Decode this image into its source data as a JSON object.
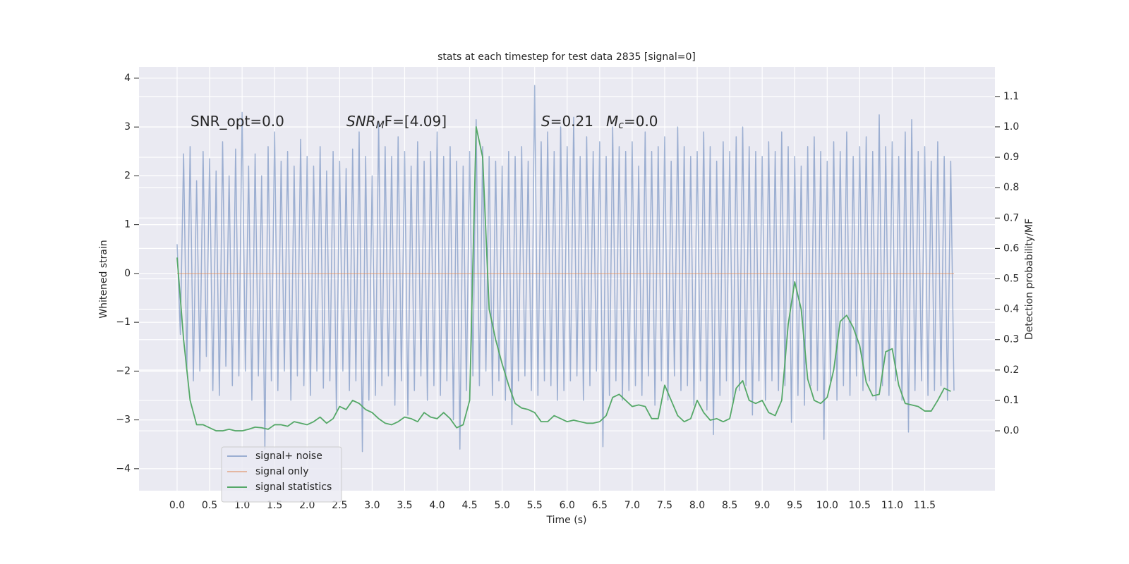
{
  "chart_data": {
    "type": "line",
    "title": "stats at each timestep for test data 2835 [signal=0]",
    "x_label": "Time (s)",
    "y_label": "Whitened strain",
    "y2_label": "Detection probability/MF",
    "xlim": [
      -0.586,
      12.58
    ],
    "ylim": [
      -4.45,
      4.23
    ],
    "y2lim": [
      -0.197,
      1.197
    ],
    "xticks": [
      {
        "value": 0,
        "label": "0.0"
      },
      0.5,
      {
        "value": 1,
        "label": "1.0"
      },
      1.5,
      {
        "value": 2,
        "label": "2.0"
      },
      2.5,
      {
        "value": 3,
        "label": "3.0"
      },
      3.5,
      {
        "value": 4,
        "label": "4.0"
      },
      4.5,
      {
        "value": 5,
        "label": "5.0"
      },
      5.5,
      {
        "value": 6,
        "label": "6.0"
      },
      6.5,
      {
        "value": 7,
        "label": "7.0"
      },
      7.5,
      {
        "value": 8,
        "label": "8.0"
      },
      8.5,
      {
        "value": 9,
        "label": "9.0"
      },
      9.5,
      {
        "value": 10,
        "label": "10.0"
      },
      10.5,
      {
        "value": 11,
        "label": "11.0"
      },
      11.5
    ],
    "yticks": [
      {
        "value": -4,
        "label": "−4"
      },
      {
        "value": -3,
        "label": "−3"
      },
      {
        "value": -2,
        "label": "−2"
      },
      {
        "value": -1,
        "label": "−1"
      },
      0,
      1,
      2,
      3,
      4
    ],
    "y2ticks": [
      {
        "value": 0,
        "label": "0.0"
      },
      0.1,
      0.2,
      0.3,
      0.4,
      0.5,
      0.6,
      0.7,
      0.8,
      0.9,
      {
        "value": 1,
        "label": "1.0"
      },
      1.1
    ],
    "grid": true,
    "legend": "lower left",
    "annotations": [
      {
        "main": "SNR_opt=0.0",
        "italic": false
      },
      {
        "main": "SNR",
        "sub": "M",
        "tail": "F=[4.09]",
        "italic": true
      },
      {
        "main": "S",
        "tail": "=0.21",
        "italic": true
      },
      {
        "main": "M",
        "sub": "c",
        "tail": "=0.0",
        "italic": true
      }
    ],
    "series": [
      {
        "name": "signal+ noise",
        "color": "#4c72b0",
        "axis": "y",
        "x": [
          0,
          0.05,
          0.1,
          0.15,
          0.2,
          0.25,
          0.3,
          0.35,
          0.4,
          0.45,
          0.5,
          0.55,
          0.6,
          0.65,
          0.7,
          0.75,
          0.8,
          0.85,
          0.9,
          0.95,
          1,
          1.05,
          1.1,
          1.15,
          1.2,
          1.25,
          1.3,
          1.35,
          1.4,
          1.45,
          1.5,
          1.55,
          1.6,
          1.65,
          1.7,
          1.75,
          1.8,
          1.85,
          1.9,
          1.95,
          2,
          2.05,
          2.1,
          2.15,
          2.2,
          2.25,
          2.3,
          2.35,
          2.4,
          2.45,
          2.5,
          2.55,
          2.6,
          2.65,
          2.7,
          2.75,
          2.8,
          2.85,
          2.9,
          2.95,
          3,
          3.05,
          3.1,
          3.15,
          3.2,
          3.25,
          3.3,
          3.35,
          3.4,
          3.45,
          3.5,
          3.55,
          3.6,
          3.65,
          3.7,
          3.75,
          3.8,
          3.85,
          3.9,
          3.95,
          4,
          4.05,
          4.1,
          4.15,
          4.2,
          4.25,
          4.3,
          4.35,
          4.4,
          4.45,
          4.5,
          4.55,
          4.6,
          4.65,
          4.7,
          4.75,
          4.8,
          4.85,
          4.9,
          4.95,
          5,
          5.05,
          5.1,
          5.15,
          5.2,
          5.25,
          5.3,
          5.35,
          5.4,
          5.45,
          5.5,
          5.55,
          5.6,
          5.65,
          5.7,
          5.75,
          5.8,
          5.85,
          5.9,
          5.95,
          6,
          6.05,
          6.1,
          6.15,
          6.2,
          6.25,
          6.3,
          6.35,
          6.4,
          6.45,
          6.5,
          6.55,
          6.6,
          6.65,
          6.7,
          6.75,
          6.8,
          6.85,
          6.9,
          6.95,
          7,
          7.05,
          7.1,
          7.15,
          7.2,
          7.25,
          7.3,
          7.35,
          7.4,
          7.45,
          7.5,
          7.55,
          7.6,
          7.65,
          7.7,
          7.75,
          7.8,
          7.85,
          7.9,
          7.95,
          8,
          8.05,
          8.1,
          8.15,
          8.2,
          8.25,
          8.3,
          8.35,
          8.4,
          8.45,
          8.5,
          8.55,
          8.6,
          8.65,
          8.7,
          8.75,
          8.8,
          8.85,
          8.9,
          8.95,
          9,
          9.05,
          9.1,
          9.15,
          9.2,
          9.25,
          9.3,
          9.35,
          9.4,
          9.45,
          9.5,
          9.55,
          9.6,
          9.65,
          9.7,
          9.75,
          9.8,
          9.85,
          9.9,
          9.95,
          10,
          10.05,
          10.1,
          10.15,
          10.2,
          10.25,
          10.3,
          10.35,
          10.4,
          10.45,
          10.5,
          10.55,
          10.6,
          10.65,
          10.7,
          10.75,
          10.8,
          10.85,
          10.9,
          10.95,
          11,
          11.05,
          11.1,
          11.15,
          11.2,
          11.25,
          11.3,
          11.35,
          11.4,
          11.45,
          11.5,
          11.55,
          11.6,
          11.65,
          11.7,
          11.75,
          11.8,
          11.85,
          11.9,
          11.95
        ],
        "values": [
          0.6,
          -1.25,
          2.45,
          -1.95,
          2.6,
          -2.2,
          1.9,
          -2.0,
          2.5,
          -1.7,
          2.35,
          -2.4,
          2.1,
          -2.5,
          2.7,
          -1.9,
          2.0,
          -2.3,
          2.55,
          -2.1,
          3.3,
          -2.0,
          2.2,
          -2.6,
          2.45,
          -2.1,
          2.0,
          -3.6,
          2.6,
          -2.2,
          2.9,
          -2.4,
          2.3,
          -2.0,
          2.5,
          -2.6,
          2.2,
          -2.1,
          2.75,
          -2.3,
          2.4,
          -2.5,
          2.2,
          -2.0,
          2.6,
          -2.35,
          2.1,
          -2.2,
          2.5,
          -2.8,
          2.3,
          -2.0,
          2.15,
          -2.4,
          2.55,
          -2.2,
          2.9,
          -3.65,
          2.4,
          -2.6,
          2.0,
          -2.5,
          3.1,
          -2.3,
          2.6,
          -2.1,
          2.4,
          -2.7,
          2.8,
          -2.2,
          2.5,
          -2.9,
          2.2,
          -2.4,
          2.7,
          -2.1,
          2.3,
          -2.6,
          2.5,
          -2.3,
          2.9,
          -2.5,
          2.4,
          -2.2,
          2.6,
          -3.0,
          2.3,
          -3.6,
          2.2,
          -2.4,
          2.5,
          -2.1,
          3.15,
          -2.3,
          2.6,
          -2.0,
          2.4,
          -2.5,
          2.3,
          -2.2,
          2.2,
          -2.6,
          2.5,
          -3.1,
          2.4,
          -2.2,
          2.6,
          -2.1,
          2.3,
          -2.4,
          3.85,
          -2.5,
          2.7,
          -2.2,
          2.9,
          -2.3,
          2.5,
          -2.6,
          3.0,
          -2.4,
          2.6,
          -2.2,
          3.2,
          -2.1,
          2.4,
          -2.6,
          2.8,
          -2.3,
          2.5,
          -2.0,
          2.7,
          -3.55,
          2.4,
          -2.5,
          3.0,
          -2.2,
          2.6,
          -2.6,
          2.5,
          -2.4,
          2.7,
          -2.3,
          2.2,
          -2.5,
          2.9,
          -2.1,
          2.5,
          -2.7,
          2.6,
          -2.2,
          2.8,
          -2.6,
          2.3,
          -2.1,
          3.0,
          -2.4,
          2.6,
          -2.3,
          2.4,
          -2.7,
          2.5,
          -2.2,
          2.9,
          -2.8,
          2.6,
          -3.3,
          2.3,
          -2.5,
          2.7,
          -2.2,
          2.5,
          -2.6,
          2.8,
          -2.4,
          3.0,
          -2.3,
          2.6,
          -2.9,
          2.5,
          -2.2,
          2.4,
          -2.6,
          2.7,
          -2.2,
          2.5,
          -2.4,
          2.9,
          -2.3,
          2.6,
          -3.05,
          2.4,
          -2.5,
          2.2,
          -2.7,
          2.6,
          -2.3,
          2.8,
          -2.4,
          2.5,
          -3.4,
          2.3,
          -2.2,
          2.7,
          -2.6,
          2.5,
          -2.3,
          2.9,
          -2.5,
          2.4,
          -2.1,
          2.6,
          -2.4,
          2.8,
          -2.2,
          2.5,
          -2.6,
          3.25,
          -2.3,
          2.6,
          -2.5,
          2.7,
          -2.2,
          2.4,
          -2.6,
          2.9,
          -3.25,
          3.15,
          -2.4,
          2.5,
          -2.2,
          2.6,
          -2.5,
          2.3,
          -2.4,
          2.7,
          -2.3,
          2.4,
          -2.6,
          2.3,
          -2.4
        ]
      },
      {
        "name": "signal only",
        "color": "#dd8452",
        "axis": "y",
        "x": [
          0,
          11.95
        ],
        "values": [
          0,
          0
        ]
      },
      {
        "name": "signal statistics",
        "color": "#55a868",
        "axis": "y2",
        "x": [
          0,
          0.1,
          0.2,
          0.3,
          0.4,
          0.5,
          0.6,
          0.7,
          0.8,
          0.9,
          1,
          1.1,
          1.2,
          1.3,
          1.4,
          1.5,
          1.6,
          1.7,
          1.8,
          1.9,
          2,
          2.1,
          2.2,
          2.3,
          2.4,
          2.5,
          2.6,
          2.7,
          2.8,
          2.9,
          3,
          3.1,
          3.2,
          3.3,
          3.4,
          3.5,
          3.6,
          3.7,
          3.8,
          3.9,
          4,
          4.1,
          4.2,
          4.3,
          4.4,
          4.5,
          4.6,
          4.7,
          4.8,
          4.9,
          5,
          5.1,
          5.2,
          5.3,
          5.4,
          5.5,
          5.6,
          5.7,
          5.8,
          5.9,
          6,
          6.1,
          6.2,
          6.3,
          6.4,
          6.5,
          6.6,
          6.7,
          6.8,
          6.9,
          7,
          7.1,
          7.2,
          7.3,
          7.4,
          7.5,
          7.6,
          7.7,
          7.8,
          7.9,
          8,
          8.1,
          8.2,
          8.3,
          8.4,
          8.5,
          8.6,
          8.7,
          8.8,
          8.9,
          9,
          9.1,
          9.2,
          9.3,
          9.4,
          9.5,
          9.6,
          9.7,
          9.8,
          9.9,
          10,
          10.1,
          10.2,
          10.3,
          10.4,
          10.5,
          10.6,
          10.7,
          10.8,
          10.9,
          11,
          11.1,
          11.2,
          11.3,
          11.4,
          11.5,
          11.6,
          11.7,
          11.8,
          11.9
        ],
        "values": [
          0.57,
          0.3,
          0.1,
          0.02,
          0.02,
          0.01,
          0.0,
          0.0,
          0.005,
          0.0,
          0.0,
          0.005,
          0.012,
          0.01,
          0.005,
          0.02,
          0.02,
          0.015,
          0.03,
          0.025,
          0.02,
          0.03,
          0.045,
          0.025,
          0.04,
          0.08,
          0.07,
          0.1,
          0.09,
          0.07,
          0.06,
          0.04,
          0.025,
          0.02,
          0.03,
          0.045,
          0.04,
          0.03,
          0.06,
          0.045,
          0.04,
          0.06,
          0.04,
          0.01,
          0.02,
          0.1,
          1.0,
          0.9,
          0.4,
          0.3,
          0.22,
          0.15,
          0.09,
          0.075,
          0.07,
          0.06,
          0.03,
          0.03,
          0.05,
          0.04,
          0.03,
          0.035,
          0.03,
          0.025,
          0.025,
          0.03,
          0.05,
          0.11,
          0.12,
          0.1,
          0.08,
          0.085,
          0.08,
          0.04,
          0.04,
          0.15,
          0.1,
          0.05,
          0.03,
          0.04,
          0.1,
          0.06,
          0.035,
          0.04,
          0.03,
          0.04,
          0.14,
          0.165,
          0.1,
          0.09,
          0.1,
          0.06,
          0.05,
          0.1,
          0.35,
          0.49,
          0.4,
          0.17,
          0.1,
          0.09,
          0.11,
          0.2,
          0.36,
          0.38,
          0.34,
          0.28,
          0.16,
          0.115,
          0.12,
          0.26,
          0.27,
          0.15,
          0.09,
          0.085,
          0.08,
          0.065,
          0.065,
          0.1,
          0.14,
          0.13
        ]
      }
    ]
  }
}
